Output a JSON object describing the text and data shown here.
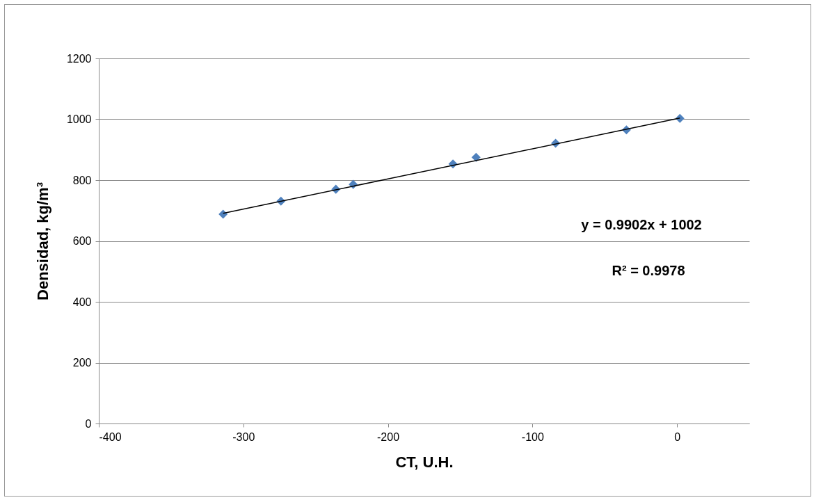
{
  "chart_data": {
    "type": "scatter",
    "xlabel": "CT, U.H.",
    "ylabel": "Densidad, kg/m³",
    "series": [
      {
        "color": "#4f81bd",
        "marker": "diamond",
        "x": [
          -314,
          -274,
          -236,
          -224,
          -155,
          -139,
          -84,
          -35,
          2
        ],
        "values": [
          688,
          731,
          770,
          786,
          853,
          875,
          921,
          965,
          1003
        ]
      },
      {
        "type": "line",
        "color": "#000000",
        "x": [
          -314,
          2
        ],
        "values": [
          691,
          1004
        ]
      }
    ],
    "xlim": [
      -400,
      50
    ],
    "xticks": [
      -400,
      -300,
      -200,
      -100,
      0
    ],
    "ylim": [
      0,
      1200
    ],
    "yticks": [
      0,
      200,
      400,
      600,
      800,
      1000,
      1200
    ],
    "grid": "y",
    "annotations": [
      "y = 0.9902x + 1002",
      "R² = 0.9978"
    ]
  }
}
